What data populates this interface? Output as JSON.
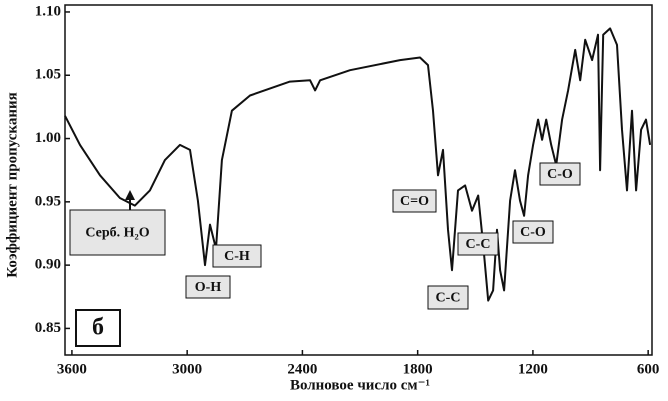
{
  "chart_data": {
    "type": "line",
    "xlabel": "Волновое число см⁻¹",
    "ylabel": "Коэффициент пропускания",
    "panel_label": "б",
    "xlim": [
      3636,
      580
    ],
    "xticks": [
      3600,
      3000,
      2400,
      1800,
      1200,
      600
    ],
    "ylim": [
      0.829,
      1.1055
    ],
    "yticks": [
      {
        "value": 1.1,
        "label": "1.10"
      },
      1.05,
      {
        "value": 1.0,
        "label": "1.00"
      },
      0.95,
      {
        "value": 0.9,
        "label": "0.90"
      },
      0.85
    ],
    "series": [
      {
        "color": "#111111",
        "x": [
          3636,
          3558,
          3454,
          3350,
          3272,
          3194,
          3116,
          3038,
          2985,
          2944,
          2907,
          2881,
          2850,
          2819,
          2767,
          2673,
          2465,
          2360,
          2334,
          2308,
          2152,
          1892,
          1788,
          1746,
          1720,
          1694,
          1668,
          1642,
          1621,
          1590,
          1553,
          1517,
          1485,
          1459,
          1433,
          1407,
          1387,
          1371,
          1350,
          1319,
          1293,
          1267,
          1246,
          1225,
          1199,
          1173,
          1152,
          1131,
          1105,
          1079,
          1048,
          1017,
          980,
          954,
          928,
          892,
          861,
          850,
          834,
          798,
          762,
          736,
          710,
          684,
          663,
          637,
          611,
          590
        ],
        "values": [
          1.018,
          0.995,
          0.971,
          0.953,
          0.947,
          0.959,
          0.983,
          0.995,
          0.991,
          0.951,
          0.9,
          0.932,
          0.913,
          0.983,
          1.022,
          1.034,
          1.045,
          1.046,
          1.038,
          1.046,
          1.054,
          1.062,
          1.064,
          1.058,
          1.022,
          0.971,
          0.991,
          0.928,
          0.896,
          0.959,
          0.963,
          0.943,
          0.955,
          0.916,
          0.872,
          0.88,
          0.928,
          0.896,
          0.88,
          0.951,
          0.975,
          0.951,
          0.939,
          0.971,
          0.995,
          1.015,
          0.999,
          1.015,
          0.995,
          0.979,
          1.015,
          1.038,
          1.07,
          1.046,
          1.078,
          1.062,
          1.082,
          0.975,
          1.082,
          1.087,
          1.074,
          1.007,
          0.959,
          1.022,
          0.959,
          1.007,
          1.015,
          0.995
        ]
      }
    ],
    "annotations": [
      "Серб. H₂O",
      "O-H",
      "C-H",
      "C=O",
      "C-C",
      "C-C",
      "C-O",
      "C-O"
    ]
  }
}
